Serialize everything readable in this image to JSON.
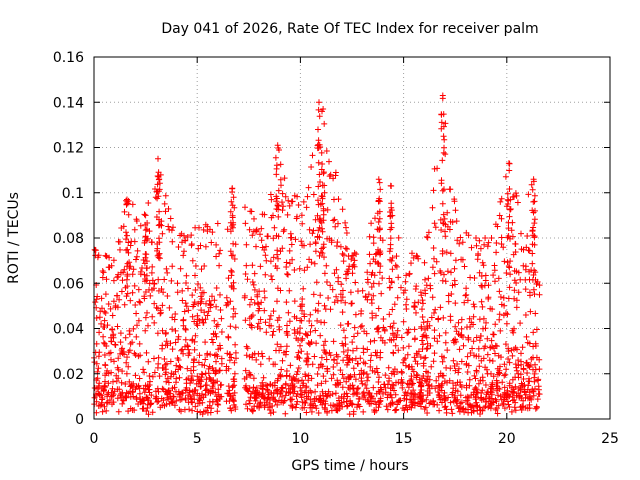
{
  "chart_data": {
    "type": "scatter",
    "title": "Day 041 of 2026, Rate Of TEC Index for receiver palm",
    "xlabel": "GPS time / hours",
    "ylabel": "ROTI / TECUs",
    "xlim": [
      0,
      25
    ],
    "ylim": [
      0,
      0.16
    ],
    "x_ticks": [
      0,
      5,
      10,
      15,
      20,
      25
    ],
    "x_tick_labels": [
      "0",
      "5",
      "10",
      "15",
      "20",
      "25"
    ],
    "y_ticks": [
      0,
      0.02,
      0.04,
      0.06,
      0.08,
      0.1,
      0.12,
      0.14,
      0.16
    ],
    "y_tick_labels": [
      "0",
      "0.02",
      "0.04",
      "0.06",
      "0.08",
      "0.1",
      "0.12",
      "0.14",
      "0.16"
    ],
    "grid": true,
    "marker": "+",
    "marker_color": "#ff0000",
    "data_time_range_hours": [
      0,
      21.6
    ],
    "data_gaps_hours": [
      [
        6.2,
        6.4
      ],
      [
        6.9,
        7.3
      ]
    ],
    "series": [
      {
        "name": "ROTI",
        "peaks": [
          {
            "x": 3.1,
            "y": 0.115
          },
          {
            "x": 8.9,
            "y": 0.121
          },
          {
            "x": 10.9,
            "y": 0.14
          },
          {
            "x": 11.1,
            "y": 0.137
          },
          {
            "x": 16.9,
            "y": 0.143
          },
          {
            "x": 20.1,
            "y": 0.113
          },
          {
            "x": 21.3,
            "y": 0.106
          },
          {
            "x": 6.7,
            "y": 0.102
          },
          {
            "x": 14.4,
            "y": 0.103
          },
          {
            "x": 13.8,
            "y": 0.106
          },
          {
            "x": 1.6,
            "y": 0.097
          },
          {
            "x": 2.5,
            "y": 0.09
          }
        ],
        "envelope": [
          {
            "x": 0.0,
            "y": 0.075
          },
          {
            "x": 1.0,
            "y": 0.07
          },
          {
            "x": 1.6,
            "y": 0.097
          },
          {
            "x": 2.5,
            "y": 0.09
          },
          {
            "x": 3.1,
            "y": 0.115
          },
          {
            "x": 3.8,
            "y": 0.085
          },
          {
            "x": 4.5,
            "y": 0.08
          },
          {
            "x": 5.2,
            "y": 0.088
          },
          {
            "x": 5.8,
            "y": 0.082
          },
          {
            "x": 6.7,
            "y": 0.102
          },
          {
            "x": 7.5,
            "y": 0.092
          },
          {
            "x": 8.4,
            "y": 0.09
          },
          {
            "x": 8.9,
            "y": 0.121
          },
          {
            "x": 9.6,
            "y": 0.1
          },
          {
            "x": 10.3,
            "y": 0.095
          },
          {
            "x": 10.9,
            "y": 0.14
          },
          {
            "x": 11.1,
            "y": 0.137
          },
          {
            "x": 11.7,
            "y": 0.11
          },
          {
            "x": 12.4,
            "y": 0.075
          },
          {
            "x": 13.1,
            "y": 0.07
          },
          {
            "x": 13.8,
            "y": 0.106
          },
          {
            "x": 14.4,
            "y": 0.103
          },
          {
            "x": 15.1,
            "y": 0.075
          },
          {
            "x": 16.0,
            "y": 0.07
          },
          {
            "x": 16.9,
            "y": 0.143
          },
          {
            "x": 17.6,
            "y": 0.085
          },
          {
            "x": 18.4,
            "y": 0.08
          },
          {
            "x": 19.3,
            "y": 0.08
          },
          {
            "x": 20.1,
            "y": 0.113
          },
          {
            "x": 20.7,
            "y": 0.09
          },
          {
            "x": 21.3,
            "y": 0.106
          },
          {
            "x": 21.6,
            "y": 0.07
          }
        ],
        "baseline_range": [
          0.002,
          0.012
        ]
      }
    ]
  }
}
